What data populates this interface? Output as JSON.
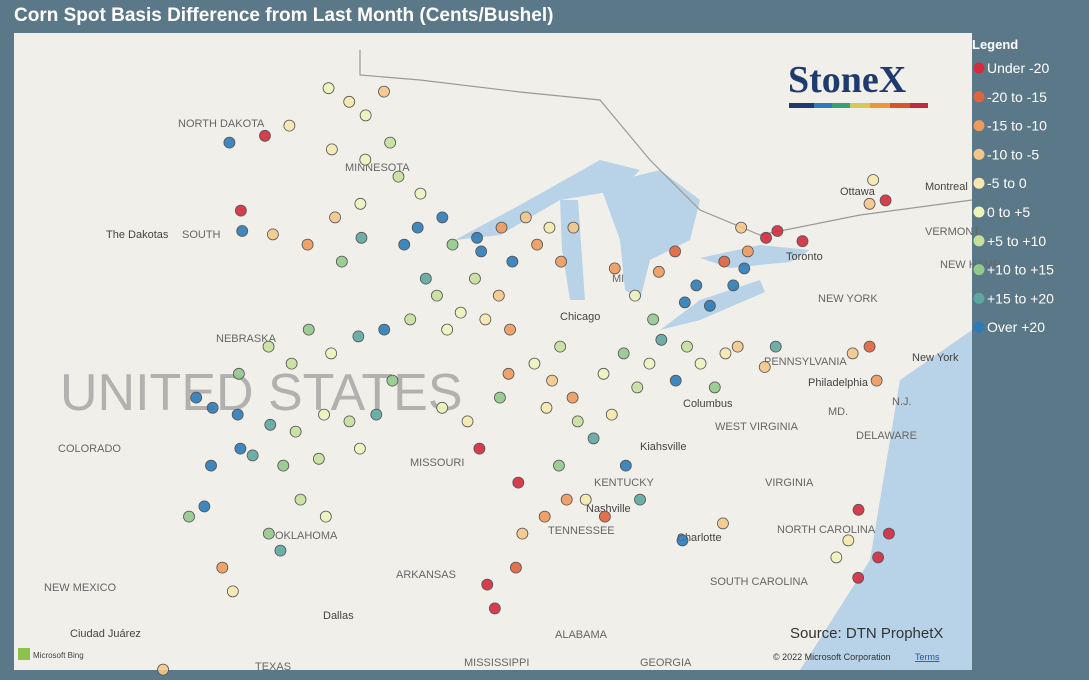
{
  "title": "Corn Spot Basis Difference from Last Month (Cents/Bushel)",
  "legend": {
    "title": "Legend",
    "items": [
      {
        "label": "Under -20",
        "color": "#d42a3c"
      },
      {
        "label": "-20 to -15",
        "color": "#e0643c"
      },
      {
        "label": "-15 to -10",
        "color": "#ee9a5c"
      },
      {
        "label": "-10 to -5",
        "color": "#f4c68a"
      },
      {
        "label": "-5 to 0",
        "color": "#f6e8ae"
      },
      {
        "label": "0 to +5",
        "color": "#eef3bc"
      },
      {
        "label": "+5 to +10",
        "color": "#c6e09c"
      },
      {
        "label": "+10 to +15",
        "color": "#92c98c"
      },
      {
        "label": "+15 to +20",
        "color": "#5ea6a0"
      },
      {
        "label": "Over +20",
        "color": "#2c7bb8"
      }
    ]
  },
  "logo": "StoneX",
  "source": "Source: DTN ProphetX",
  "copyright": "© 2022 Microsoft Corporation",
  "terms": "Terms",
  "bing": "Microsoft Bing",
  "labels": [
    "NORTH DAKOTA",
    "SOUTH",
    "The Dakotas",
    "MINNESOTA",
    "NEBRASKA",
    "UNITED STATES",
    "COLORADO",
    "MISSOURI",
    "OKLAHOMA",
    "NEW MEXICO",
    "ARKANSAS",
    "Dallas",
    "Ciudad Juárez",
    "TEXAS",
    "MISSISSIPPI",
    "ALABAMA",
    "GEORGIA",
    "TENNESSEE",
    "KENTUCKY",
    "Nashville",
    "Chicago",
    "Columbus",
    "WEST VIRGINIA",
    "VIRGINIA",
    "NORTH CAROLINA",
    "Charlotte",
    "SOUTH CAROLINA",
    "Kiahsville",
    "PENNSYLVANIA",
    "Philadelphia",
    "NEW YORK",
    "New York",
    "MD.",
    "N.J.",
    "DELAWARE",
    "Toronto",
    "Ottawa",
    "Montreal",
    "VERMONT",
    "NEW HAMP",
    "MI"
  ],
  "points": [
    [
      -99,
      48.6,
      5
    ],
    [
      -98,
      48.2,
      4
    ],
    [
      -97.2,
      47.8,
      5
    ],
    [
      -96.5,
      48.5,
      3
    ],
    [
      -96,
      47,
      6
    ],
    [
      -97,
      46.5,
      5
    ],
    [
      -98.5,
      46.8,
      4
    ],
    [
      -100.5,
      47.5,
      4
    ],
    [
      -101.5,
      47.2,
      0
    ],
    [
      -103,
      47,
      9
    ],
    [
      -95.5,
      46,
      6
    ],
    [
      -94.5,
      45.5,
      5
    ],
    [
      -93.5,
      44.8,
      9
    ],
    [
      -94.5,
      44.5,
      9
    ],
    [
      -95,
      44,
      9
    ],
    [
      -93,
      44,
      7
    ],
    [
      -92,
      44.2,
      9
    ],
    [
      -91.8,
      43.8,
      9
    ],
    [
      -90.5,
      43.5,
      9
    ],
    [
      -91,
      44.5,
      2
    ],
    [
      -90,
      44.8,
      3
    ],
    [
      -89.5,
      44,
      2
    ],
    [
      -89,
      44.5,
      4
    ],
    [
      -88.5,
      43.5,
      2
    ],
    [
      -88,
      44.5,
      3
    ],
    [
      -100.5,
      44.3,
      3
    ],
    [
      -99,
      44,
      2
    ],
    [
      -98,
      44.8,
      3
    ],
    [
      -97.5,
      43.5,
      7
    ],
    [
      -96.8,
      44.2,
      8
    ],
    [
      -97,
      45.2,
      5
    ],
    [
      -101.8,
      44.4,
      9
    ],
    [
      -102,
      45,
      0
    ],
    [
      -100,
      41,
      6
    ],
    [
      -98.5,
      41.5,
      7
    ],
    [
      -97.5,
      40.8,
      5
    ],
    [
      -96.5,
      41.3,
      8
    ],
    [
      -99,
      40.5,
      6
    ],
    [
      -101,
      40.2,
      7
    ],
    [
      -102.5,
      39.5,
      9
    ],
    [
      -101.8,
      39.2,
      9
    ],
    [
      -100.8,
      39,
      9
    ],
    [
      -99.5,
      38.7,
      8
    ],
    [
      -98.5,
      38.5,
      6
    ],
    [
      -97.5,
      39,
      5
    ],
    [
      -96.5,
      38.8,
      6
    ],
    [
      -100.5,
      38,
      9
    ],
    [
      -101.5,
      37.5,
      9
    ],
    [
      -100,
      37.8,
      8
    ],
    [
      -98.8,
      37.5,
      7
    ],
    [
      -97.5,
      37.7,
      6
    ],
    [
      -96,
      38,
      5
    ],
    [
      -95.5,
      39,
      8
    ],
    [
      -95,
      40,
      7
    ],
    [
      -95.5,
      41.5,
      9
    ],
    [
      -94.5,
      41.8,
      6
    ],
    [
      -93.5,
      42.5,
      6
    ],
    [
      -92.5,
      42,
      5
    ],
    [
      -91.5,
      41.8,
      4
    ],
    [
      -93,
      41.5,
      5
    ],
    [
      -94,
      43,
      8
    ],
    [
      -92,
      43,
      6
    ],
    [
      -91,
      42.5,
      3
    ],
    [
      -90.5,
      41.5,
      2
    ],
    [
      -98,
      36.5,
      6
    ],
    [
      -97,
      36,
      5
    ],
    [
      -99,
      35.5,
      7
    ],
    [
      -98.5,
      35,
      8
    ],
    [
      -101.5,
      36.3,
      9
    ],
    [
      -102,
      36,
      7
    ],
    [
      -100.5,
      34.5,
      2
    ],
    [
      -100,
      33.8,
      4
    ],
    [
      -102,
      31.5,
      3
    ],
    [
      -93,
      39.2,
      5
    ],
    [
      -92,
      38.8,
      4
    ],
    [
      -90.8,
      39.5,
      7
    ],
    [
      -91.5,
      38,
      0
    ],
    [
      -90.5,
      40.2,
      2
    ],
    [
      -89.5,
      40.5,
      5
    ],
    [
      -88.8,
      40,
      3
    ],
    [
      -88.5,
      41,
      6
    ],
    [
      -89,
      39.2,
      4
    ],
    [
      -88,
      39.5,
      2
    ],
    [
      -87.8,
      38.8,
      6
    ],
    [
      -86.8,
      40.2,
      5
    ],
    [
      -86,
      40.8,
      7
    ],
    [
      -85.5,
      39.8,
      6
    ],
    [
      -86.5,
      39,
      4
    ],
    [
      -87.2,
      38.3,
      8
    ],
    [
      -85,
      40.5,
      5
    ],
    [
      -84.5,
      41.2,
      8
    ],
    [
      -83.5,
      41,
      6
    ],
    [
      -83,
      40.5,
      5
    ],
    [
      -84,
      40,
      9
    ],
    [
      -82.5,
      39.8,
      7
    ],
    [
      -82,
      40.8,
      4
    ],
    [
      -81.5,
      41,
      3
    ],
    [
      -84.8,
      41.8,
      7
    ],
    [
      -85.5,
      42.5,
      5
    ],
    [
      -86.3,
      43.3,
      2
    ],
    [
      -84.5,
      43.2,
      2
    ],
    [
      -83.8,
      43.8,
      1
    ],
    [
      -83,
      42.8,
      9
    ],
    [
      -82.5,
      42.2,
      9
    ],
    [
      -83.5,
      42.3,
      9
    ],
    [
      -81.5,
      42.8,
      9
    ],
    [
      -81,
      43.3,
      9
    ],
    [
      -80.8,
      43.8,
      2
    ],
    [
      -81.8,
      43.5,
      1
    ],
    [
      -80,
      44.2,
      0
    ],
    [
      -79.5,
      44.4,
      0
    ],
    [
      -78.5,
      44.1,
      0
    ],
    [
      -81,
      44.5,
      3
    ],
    [
      -75.5,
      45.2,
      3
    ],
    [
      -74.8,
      45.3,
      0
    ],
    [
      -75.2,
      45.9,
      4
    ],
    [
      -90,
      37,
      0
    ],
    [
      -89.8,
      35.5,
      3
    ],
    [
      -89,
      36,
      2
    ],
    [
      -88.2,
      36.5,
      2
    ],
    [
      -87.5,
      36.5,
      4
    ],
    [
      -86.8,
      36,
      1
    ],
    [
      -85.5,
      36.5,
      8
    ],
    [
      -86,
      37.5,
      9
    ],
    [
      -88.5,
      37.5,
      7
    ],
    [
      -91,
      34,
      0
    ],
    [
      -90.7,
      33.3,
      0
    ],
    [
      -90,
      34.5,
      1
    ],
    [
      -84,
      35.3,
      9
    ],
    [
      -82.5,
      35.8,
      3
    ],
    [
      -77,
      34.8,
      0
    ],
    [
      -76.5,
      35.5,
      0
    ],
    [
      -77.8,
      34.2,
      0
    ],
    [
      -78.5,
      34.8,
      5
    ],
    [
      -78,
      35.3,
      4
    ],
    [
      -77.5,
      36.2,
      0
    ],
    [
      -76.2,
      40,
      2
    ],
    [
      -77,
      40.8,
      3
    ],
    [
      -76.3,
      41,
      1
    ],
    [
      -80,
      41,
      8
    ],
    [
      -80.5,
      40.4,
      3
    ]
  ]
}
